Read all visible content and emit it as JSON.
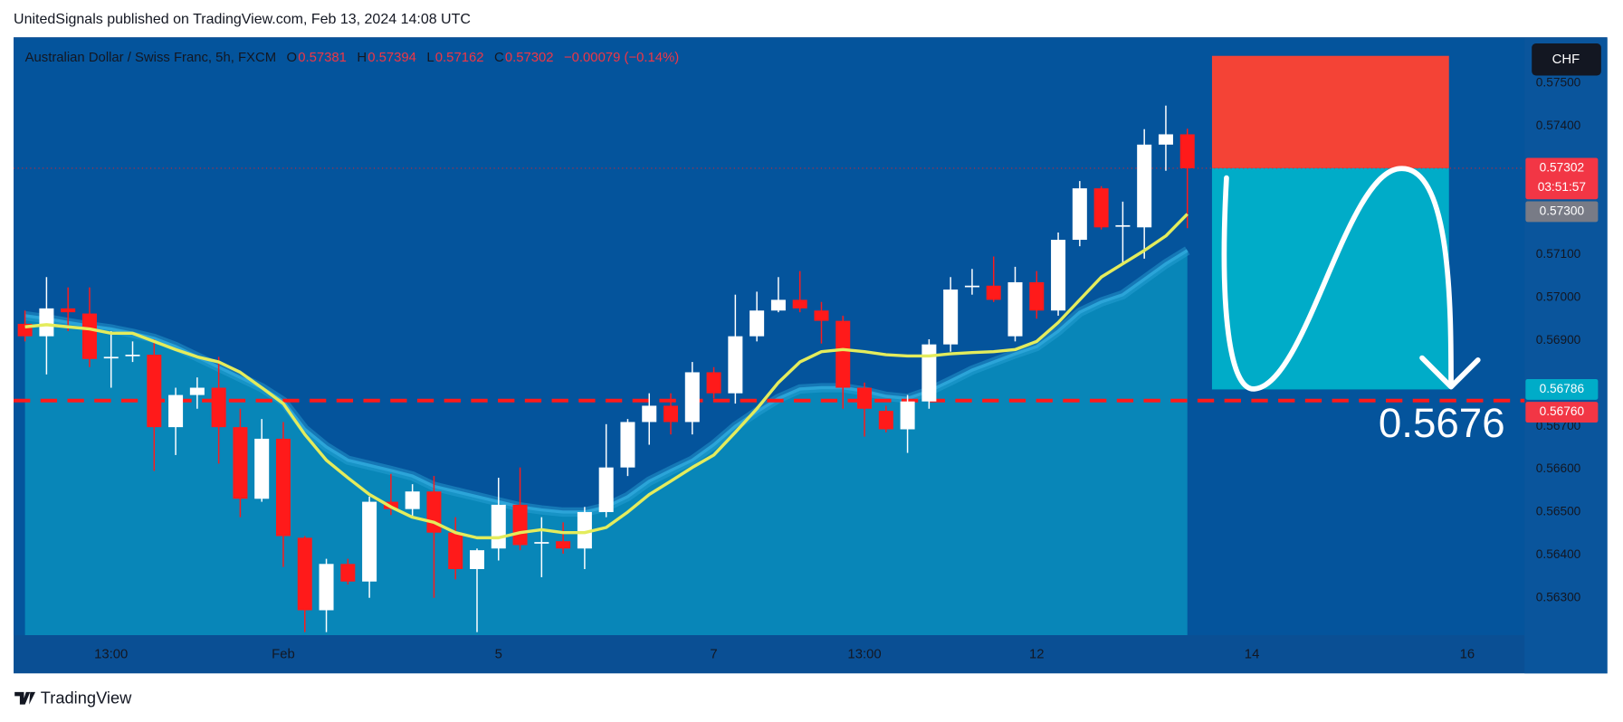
{
  "header": {
    "title": "UnitedSignals published on TradingView.com, Feb 13, 2024 14:08 UTC"
  },
  "footer": {
    "brand": "TradingView"
  },
  "chart_data": {
    "type": "candlestick",
    "title": "Australian Dollar / Swiss Franc, 5h, FXCM",
    "legend_values": [
      {
        "key": "O",
        "value": "0.57381"
      },
      {
        "key": "H",
        "value": "0.57394"
      },
      {
        "key": "L",
        "value": "0.57162"
      },
      {
        "key": "C",
        "value": "0.57302"
      }
    ],
    "change": "−0.00079 (−0.14%)",
    "currency": "CHF",
    "categories": [
      null,
      null,
      null,
      null,
      "13:00",
      null,
      null,
      null,
      null,
      null,
      null,
      null,
      "Feb",
      null,
      null,
      null,
      null,
      null,
      null,
      null,
      null,
      null,
      "5",
      null,
      null,
      null,
      null,
      null,
      null,
      null,
      null,
      null,
      "7",
      null,
      null,
      null,
      null,
      null,
      null,
      "13:00",
      null,
      null,
      null,
      null,
      null,
      null,
      null,
      "12",
      null,
      null,
      null,
      null,
      null,
      null,
      null,
      null,
      null,
      "14",
      null,
      null,
      null,
      null,
      null,
      null,
      null,
      null,
      null,
      "16",
      null,
      null
    ],
    "open": [
      0.56939,
      0.5691,
      0.56975,
      0.56963,
      0.5686,
      0.56865,
      0.56867,
      0.56698,
      0.56773,
      0.5679,
      0.56698,
      0.56531,
      0.56671,
      0.5644,
      0.56271,
      0.56379,
      0.56338,
      0.56524,
      0.56507,
      0.56548,
      0.56452,
      0.56367,
      0.56415,
      0.56517,
      0.56428,
      0.56432,
      0.56415,
      0.565,
      0.56604,
      0.5671,
      0.56748,
      0.5671,
      0.56826,
      0.56777,
      0.5691,
      0.5697,
      0.56995,
      0.5697,
      0.56946,
      0.5679,
      0.56736,
      0.56693,
      0.56758,
      0.56891,
      0.57026,
      0.57028,
      0.5691,
      0.57036,
      0.5697,
      0.57135,
      0.57255,
      0.57167,
      0.57164,
      0.57357,
      0.57381,
      null,
      null,
      null,
      null,
      null,
      null,
      null,
      null,
      null,
      null,
      null,
      null,
      null,
      null,
      null
    ],
    "high": [
      0.5697,
      0.57048,
      0.57024,
      0.57024,
      0.56922,
      0.56898,
      0.56903,
      0.5679,
      0.56814,
      0.56862,
      0.56741,
      0.56717,
      0.5671,
      0.56444,
      0.56391,
      0.56391,
      0.56536,
      0.56589,
      0.56565,
      0.56584,
      0.56488,
      0.56415,
      0.5658,
      0.56604,
      0.56488,
      0.56476,
      0.56512,
      0.56705,
      0.56717,
      0.56777,
      0.56777,
      0.5685,
      0.56838,
      0.57007,
      0.57014,
      0.57048,
      0.57062,
      0.5699,
      0.56958,
      0.56802,
      0.56748,
      0.56773,
      0.56903,
      0.57048,
      0.57067,
      0.57096,
      0.57072,
      0.57062,
      0.57152,
      0.57272,
      0.5726,
      0.57224,
      0.57393,
      0.57448,
      0.57394,
      null,
      null,
      null,
      null,
      null,
      null,
      null,
      null,
      null,
      null,
      null,
      null,
      null,
      null,
      null
    ],
    "low": [
      0.56898,
      0.56821,
      0.56922,
      0.56838,
      0.5679,
      0.5685,
      0.56596,
      0.56633,
      0.56741,
      0.56613,
      0.56488,
      0.56524,
      0.56372,
      0.5622,
      0.5622,
      0.56331,
      0.563,
      0.56493,
      0.56488,
      0.563,
      0.56343,
      0.5622,
      0.56387,
      0.56411,
      0.56348,
      0.56403,
      0.56367,
      0.56488,
      0.56584,
      0.56657,
      0.56681,
      0.56681,
      0.56765,
      0.56753,
      0.56898,
      0.56966,
      0.56966,
      0.56893,
      0.56741,
      0.56676,
      0.56686,
      0.56638,
      0.56741,
      0.56874,
      0.57007,
      0.5699,
      0.56898,
      0.56951,
      0.56958,
      0.5712,
      0.57159,
      0.57079,
      0.57091,
      0.57296,
      0.57162,
      null,
      null,
      null,
      null,
      null,
      null,
      null,
      null,
      null,
      null,
      null,
      null,
      null,
      null,
      null
    ],
    "close": [
      0.5691,
      0.56975,
      0.56966,
      0.56857,
      0.56862,
      0.56867,
      0.56698,
      0.56773,
      0.5679,
      0.56698,
      0.56531,
      0.56671,
      0.56444,
      0.56271,
      0.56379,
      0.56338,
      0.56524,
      0.56507,
      0.56548,
      0.56452,
      0.56367,
      0.56411,
      0.56517,
      0.56423,
      0.5643,
      0.56415,
      0.565,
      0.56604,
      0.5671,
      0.56748,
      0.5671,
      0.56826,
      0.56777,
      0.5691,
      0.5697,
      0.56995,
      0.56975,
      0.56946,
      0.5679,
      0.56741,
      0.56693,
      0.56758,
      0.56891,
      0.57019,
      0.57028,
      0.56995,
      0.57036,
      0.5697,
      0.57135,
      0.57255,
      0.57164,
      0.57169,
      0.57357,
      0.57381,
      0.57302,
      null,
      null,
      null,
      null,
      null,
      null,
      null,
      null,
      null,
      null,
      null,
      null,
      null,
      null,
      null
    ],
    "up_color": "#ffffff",
    "down_color": "#ff1a1a",
    "lines": [
      {
        "color": "#2ba4d8",
        "fill": "#0886b8",
        "values": [
          0.56958,
          0.56951,
          0.56942,
          0.56934,
          0.56927,
          0.56917,
          0.56905,
          0.56886,
          0.56862,
          0.56838,
          0.56814,
          0.5679,
          0.56758,
          0.56693,
          0.56652,
          0.56621,
          0.56609,
          0.56597,
          0.56584,
          0.5656,
          0.56548,
          0.56536,
          0.56524,
          0.56512,
          0.56505,
          0.565,
          0.565,
          0.56512,
          0.56536,
          0.56572,
          0.56597,
          0.56621,
          0.56657,
          0.567,
          0.56734,
          0.56765,
          0.56787,
          0.5679,
          0.5679,
          0.56782,
          0.5677,
          0.56765,
          0.56782,
          0.56806,
          0.56831,
          0.5685,
          0.56869,
          0.56886,
          0.56922,
          0.56966,
          0.5699,
          0.57007,
          0.57043,
          0.57079,
          0.5711,
          null,
          null,
          null,
          null,
          null,
          null,
          null,
          null,
          null,
          null,
          null,
          null,
          null,
          null,
          null
        ]
      },
      {
        "color": "#e4ec5c",
        "values": [
          0.56932,
          0.56937,
          0.56932,
          0.56927,
          0.56917,
          0.56917,
          0.56898,
          0.56879,
          0.56862,
          0.5685,
          0.56826,
          0.5679,
          0.56753,
          0.56681,
          0.56621,
          0.5658,
          0.56541,
          0.56512,
          0.56488,
          0.56476,
          0.56452,
          0.5644,
          0.5644,
          0.56452,
          0.56459,
          0.56452,
          0.56452,
          0.56464,
          0.565,
          0.56541,
          0.56572,
          0.56604,
          0.56633,
          0.56686,
          0.56741,
          0.56802,
          0.5685,
          0.56874,
          0.56879,
          0.56874,
          0.56867,
          0.56864,
          0.56864,
          0.56869,
          0.56872,
          0.56874,
          0.56879,
          0.56898,
          0.56942,
          0.56995,
          0.57048,
          0.57079,
          0.5711,
          0.57144,
          0.57195,
          null,
          null,
          null,
          null,
          null,
          null,
          null,
          null,
          null,
          null,
          null,
          null,
          null,
          null,
          null
        ]
      }
    ],
    "ylim": [
      0.56213,
      0.57605
    ],
    "yticks": [
      {
        "value": 0.563,
        "label": "0.56300"
      },
      {
        "value": 0.564,
        "label": "0.56400"
      },
      {
        "value": 0.565,
        "label": "0.56500"
      },
      {
        "value": 0.566,
        "label": "0.56600"
      },
      {
        "value": 0.567,
        "label": "0.56700"
      },
      {
        "value": 0.569,
        "label": "0.56900"
      },
      {
        "value": 0.57,
        "label": "0.57000"
      },
      {
        "value": 0.571,
        "label": "0.57100"
      },
      {
        "value": 0.574,
        "label": "0.57400"
      },
      {
        "value": 0.575,
        "label": "0.57500"
      }
    ],
    "grid": false,
    "price_labels": [
      {
        "value": 0.57302,
        "label": "0.57302",
        "color": "#f23645"
      },
      {
        "value": 0.573,
        "label": "0.57300",
        "color": "#787b86"
      },
      {
        "value": 0.56786,
        "label": "0.56786",
        "color": "#00acc8"
      },
      {
        "value": 0.5676,
        "label": "0.56760",
        "color": "#f23645"
      }
    ],
    "countdown": "03:51:57",
    "hline": {
      "value": 0.5676,
      "color": "#ff1a1a"
    },
    "position": {
      "stop": 0.57564,
      "entry": 0.57302,
      "target": 0.56786,
      "stop_color": "#f44336",
      "target_color": "#00acc8"
    },
    "annotation": "0.5676"
  }
}
